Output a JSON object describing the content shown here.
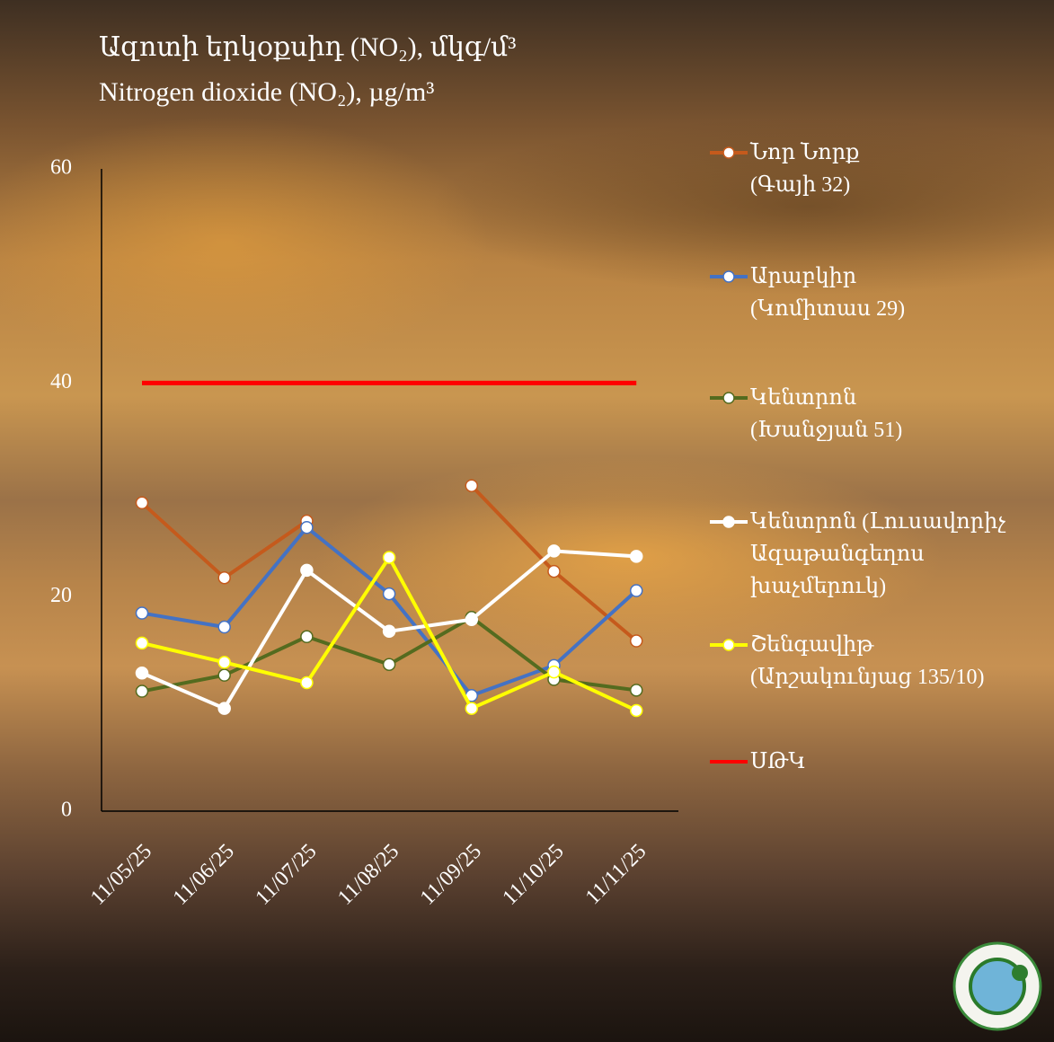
{
  "chart_data": {
    "type": "line",
    "title": "Ազոտի  երկօքսիդ (NO₂), մկգ/մ³",
    "subtitle": "Nitrogen  dioxide (NO₂), µg/m³",
    "categories": [
      "11/05/25",
      "11/06/25",
      "11/07/25",
      "11/08/25",
      "11/09/25",
      "11/10/25",
      "11/11/25"
    ],
    "ylim": [
      0,
      60
    ],
    "yticks": [
      0,
      20,
      40,
      60
    ],
    "series": [
      {
        "name": "Նոր Նորք\n(Գայի 32)",
        "color": "#c55a1c",
        "values": [
          28.8,
          21.8,
          27.1,
          null,
          30.4,
          22.4,
          15.9
        ]
      },
      {
        "name": "Արաբկիր\n(Կոմիտաս 29)",
        "color": "#4472c4",
        "values": [
          18.5,
          17.2,
          26.5,
          20.3,
          10.8,
          13.6,
          20.6
        ]
      },
      {
        "name": "Կենտրոն\n(Խանջյան 51)",
        "color": "#546b1f",
        "values": [
          11.2,
          12.7,
          16.3,
          13.7,
          18.1,
          12.3,
          11.3
        ]
      },
      {
        "name": "Կենտրոն (Լուսավորիչ\nԱզաթանգեղոս\nխաչմերուկ)",
        "color": "#ffffff",
        "values": [
          12.9,
          9.6,
          22.5,
          16.8,
          17.9,
          24.3,
          23.8
        ]
      },
      {
        "name": "Շենգավիթ\n(Արշակունյաց 135/10)",
        "color": "#ffff00",
        "values": [
          15.7,
          13.9,
          12.0,
          23.7,
          9.6,
          13.0,
          9.4
        ]
      },
      {
        "name": "ՍԹԿ",
        "color": "#ff0000",
        "values": [
          40,
          40,
          40,
          40,
          40,
          40,
          40
        ],
        "markers": false
      }
    ]
  }
}
